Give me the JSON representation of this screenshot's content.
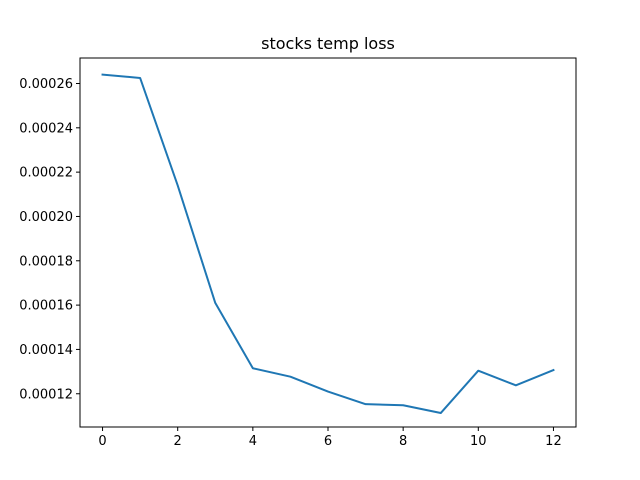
{
  "chart_data": {
    "type": "line",
    "title": "stocks temp loss",
    "xlabel": "",
    "ylabel": "",
    "xlim": [
      -0.6,
      12.6
    ],
    "ylim": [
      0.000105,
      0.0002715
    ],
    "x_ticks": [
      0,
      2,
      4,
      6,
      8,
      10,
      12
    ],
    "y_ticks": [
      0.00012,
      0.00014,
      0.00016,
      0.00018,
      0.0002,
      0.00022,
      0.00024,
      0.00026
    ],
    "x_tick_labels": [
      "0",
      "2",
      "4",
      "6",
      "8",
      "10",
      "12"
    ],
    "y_tick_labels": [
      "0.00012",
      "0.00014",
      "0.00016",
      "0.00018",
      "0.00020",
      "0.00022",
      "0.00024",
      "0.00026"
    ],
    "grid": false,
    "series": [
      {
        "color": "#1f77b4",
        "x": [
          0,
          1,
          2,
          3,
          4,
          5,
          6,
          7,
          8,
          9,
          10,
          11,
          12
        ],
        "y": [
          0.000264,
          0.0002625,
          0.000214,
          0.000161,
          0.0001315,
          0.0001277,
          0.000121,
          0.0001153,
          0.0001148,
          0.0001113,
          0.0001304,
          0.0001238,
          0.0001307
        ]
      }
    ]
  }
}
